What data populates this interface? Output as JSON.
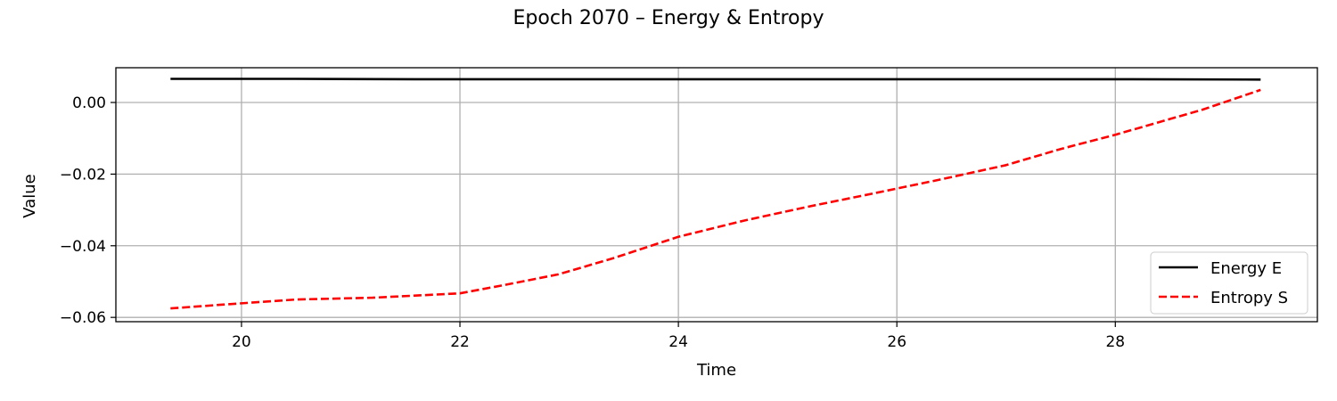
{
  "chart_data": {
    "type": "line",
    "title": "Epoch 2070 – Energy & Entropy",
    "xlabel": "Time",
    "ylabel": "Value",
    "xlim": [
      18.85,
      29.85
    ],
    "ylim": [
      -0.0612,
      0.0097
    ],
    "xticks": [
      20,
      22,
      24,
      26,
      28
    ],
    "xtick_labels": [
      "20",
      "22",
      "24",
      "26",
      "28"
    ],
    "yticks": [
      0.0,
      -0.02,
      -0.04,
      -0.06
    ],
    "ytick_labels": [
      "0.00",
      "−0.02",
      "−0.04",
      "−0.06"
    ],
    "grid": true,
    "legend_position": "lower-right",
    "series": [
      {
        "name": "Energy E",
        "color": "#000000",
        "style": "solid",
        "x": [
          19.35,
          20.5,
          21.6,
          22.5,
          24.0,
          25.5,
          27.0,
          28.0,
          29.33
        ],
        "y": [
          0.0066,
          0.0066,
          0.0065,
          0.0065,
          0.0065,
          0.0065,
          0.0065,
          0.0065,
          0.0064
        ]
      },
      {
        "name": "Entropy S",
        "color": "#ff0000",
        "style": "dashed",
        "x": [
          19.35,
          19.8,
          20.5,
          21.2,
          22.0,
          22.4,
          22.9,
          23.4,
          24.0,
          24.6,
          25.2,
          25.8,
          26.4,
          27.0,
          27.5,
          28.0,
          28.4,
          28.8,
          29.33
        ],
        "y": [
          -0.0575,
          -0.0565,
          -0.055,
          -0.0545,
          -0.0533,
          -0.051,
          -0.048,
          -0.0435,
          -0.0375,
          -0.033,
          -0.029,
          -0.0253,
          -0.0215,
          -0.0175,
          -0.013,
          -0.009,
          -0.0055,
          -0.002,
          0.0035
        ]
      }
    ]
  }
}
